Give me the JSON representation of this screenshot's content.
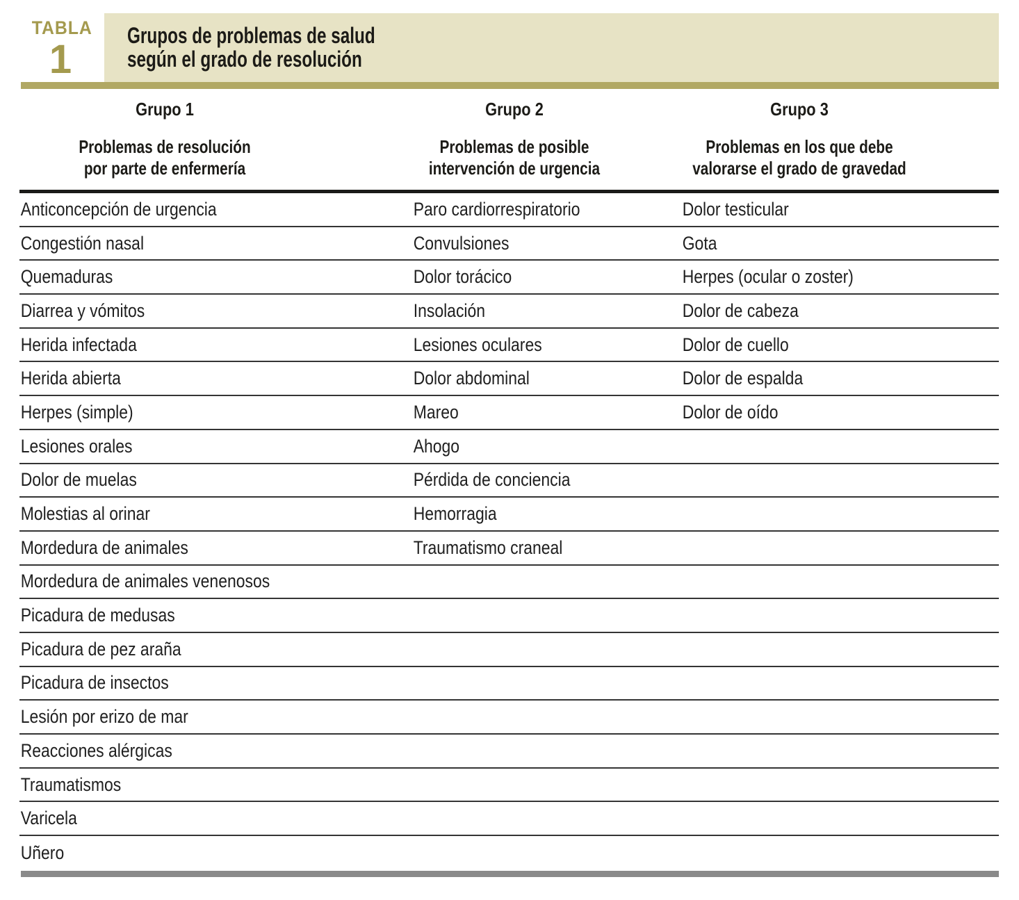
{
  "header": {
    "kicker": "TABLA",
    "number": "1",
    "title_line1": "Grupos de problemas de salud",
    "title_line2": "según el grado de resolución"
  },
  "colors": {
    "accent_gold": "#a49a4e",
    "band_beige": "#e7e3c5",
    "bar_olive": "#b1a864",
    "bar_gray": "#8a8a8a",
    "rule_black": "#1b1b19"
  },
  "columns": [
    {
      "group": "Grupo 1",
      "subtitle_line1": "Problemas de resolución",
      "subtitle_line2": "por parte de enfermería",
      "items": [
        "Anticoncepción de urgencia",
        "Congestión nasal",
        "Quemaduras",
        "Diarrea y vómitos",
        "Herida infectada",
        "Herida abierta",
        "Herpes (simple)",
        "Lesiones orales",
        "Dolor de muelas",
        "Molestias al orinar",
        "Mordedura de animales",
        "Mordedura de animales venenosos",
        "Picadura de medusas",
        "Picadura de pez araña",
        "Picadura de insectos",
        "Lesión por erizo de mar",
        "Reacciones alérgicas",
        "Traumatismos",
        "Varicela",
        "Uñero"
      ]
    },
    {
      "group": "Grupo 2",
      "subtitle_line1": "Problemas de posible",
      "subtitle_line2": "intervención de urgencia",
      "items": [
        "Paro cardiorrespiratorio",
        "Convulsiones",
        "Dolor torácico",
        "Insolación",
        "Lesiones oculares",
        "Dolor abdominal",
        "Mareo",
        "Ahogo",
        "Pérdida de conciencia",
        "Hemorragia",
        "Traumatismo craneal"
      ]
    },
    {
      "group": "Grupo 3",
      "subtitle_line1": "Problemas en los que debe",
      "subtitle_line2": "valorarse el grado de gravedad",
      "items": [
        "Dolor testicular",
        "Gota",
        "Herpes (ocular o zoster)",
        "Dolor de cabeza",
        "Dolor de cuello",
        "Dolor de espalda",
        "Dolor de oído"
      ]
    }
  ]
}
